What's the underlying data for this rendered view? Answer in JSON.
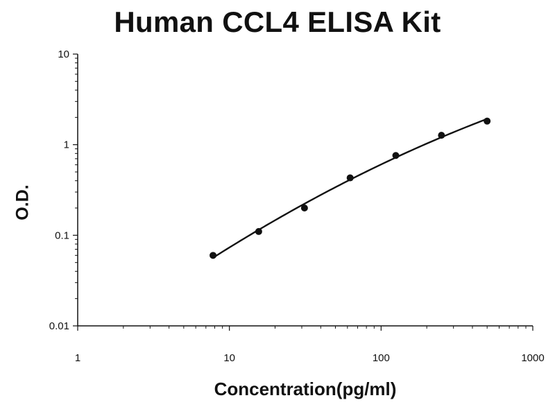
{
  "chart_data": {
    "type": "scatter",
    "title": "Human CCL4 ELISA Kit",
    "xlabel": "Concentration(pg/ml)",
    "ylabel": "O.D.",
    "x_scale": "log",
    "y_scale": "log",
    "xlim": [
      1,
      1000
    ],
    "ylim": [
      0.01,
      10
    ],
    "x_ticks": [
      1,
      10,
      100,
      1000
    ],
    "x_tick_labels": [
      "1",
      "10",
      "100",
      "1000"
    ],
    "y_ticks": [
      0.01,
      0.1,
      1,
      10
    ],
    "y_tick_labels": [
      "0.01",
      "0.1",
      "1",
      "10"
    ],
    "grid": false,
    "legend": false,
    "series": [
      {
        "x": [
          7.8,
          15.6,
          31.25,
          62.5,
          125,
          250,
          500
        ],
        "y": [
          0.06,
          0.11,
          0.2,
          0.43,
          0.76,
          1.27,
          1.82
        ],
        "trendline": true
      }
    ],
    "colors": {
      "marker": "#111111",
      "line": "#111111",
      "axis": "#111111"
    }
  }
}
